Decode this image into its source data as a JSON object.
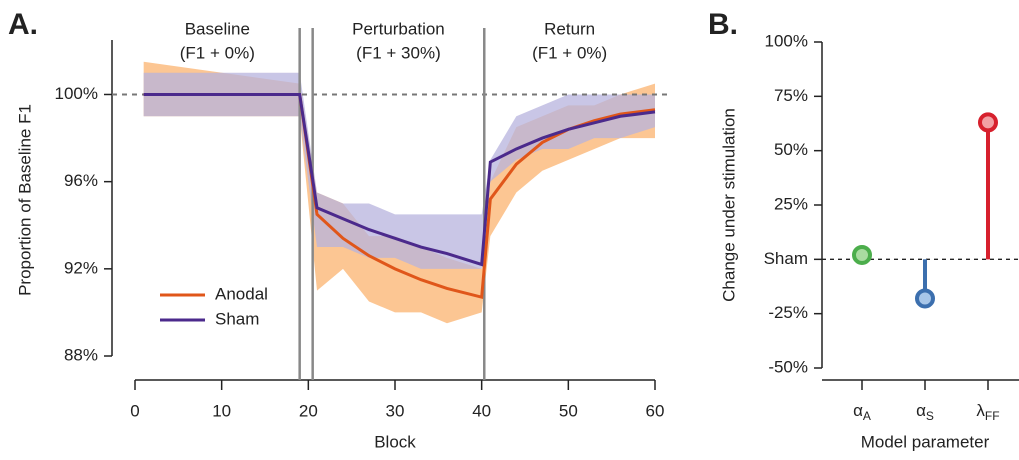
{
  "chart_data": [
    {
      "type": "line",
      "panel_label": "A.",
      "xlabel": "Block",
      "ylabel": "Proportion of Baseline F1",
      "x": [
        1,
        19,
        21,
        24,
        27,
        30,
        33,
        36,
        40,
        41,
        44,
        47,
        50,
        53,
        56,
        60
      ],
      "series": [
        {
          "name": "Anodal",
          "color": "#e0561a",
          "band_color": "#fbb36f",
          "values": [
            100,
            100,
            94.5,
            93.4,
            92.6,
            92.0,
            91.5,
            91.1,
            90.7,
            95.2,
            96.8,
            97.8,
            98.4,
            98.8,
            99.1,
            99.3
          ],
          "band_low": [
            99,
            99,
            91,
            92,
            90.5,
            90,
            90,
            89.5,
            90,
            93.5,
            95.5,
            96.5,
            97,
            97.5,
            98,
            98
          ],
          "band_high": [
            101.5,
            100.5,
            95.5,
            95,
            93.5,
            93.5,
            93,
            92.5,
            92,
            96,
            98.5,
            99,
            99.5,
            99.5,
            100,
            100.5
          ]
        },
        {
          "name": "Sham",
          "color": "#4b2a8c",
          "band_color": "#b7b3dd",
          "values": [
            100,
            100,
            94.8,
            94.3,
            93.8,
            93.4,
            93.0,
            92.7,
            92.2,
            96.9,
            97.5,
            98.0,
            98.4,
            98.7,
            99.0,
            99.2
          ],
          "band_low": [
            99,
            99,
            93,
            93,
            92.5,
            92.5,
            92,
            92,
            92,
            96,
            97,
            97.5,
            97.5,
            98,
            98,
            98.5
          ],
          "band_high": [
            101,
            101,
            95.5,
            95,
            95,
            94.5,
            94.5,
            94.5,
            94.5,
            97,
            99,
            99.5,
            100,
            100,
            100,
            100
          ]
        }
      ],
      "xlim": [
        0,
        60
      ],
      "xticks": [
        0,
        10,
        20,
        30,
        40,
        50,
        60
      ],
      "ylim": [
        88,
        102.5
      ],
      "yticks": [
        {
          "value": 88,
          "label": "88%"
        },
        {
          "value": 92,
          "label": "92%"
        },
        {
          "value": 96,
          "label": "96%"
        },
        {
          "value": 100,
          "label": "100%"
        }
      ],
      "reference_line": 100,
      "phase_boundaries": [
        19,
        20.5,
        40.3
      ],
      "phases": [
        {
          "name": "Baseline",
          "condition": "(F1 + 0%)"
        },
        {
          "name": "Perturbation",
          "condition": "(F1 + 30%)"
        },
        {
          "name": "Return",
          "condition": "(F1 + 0%)"
        }
      ]
    },
    {
      "type": "lollipop",
      "panel_label": "B.",
      "xlabel": "Model parameter",
      "ylabel": "Change under stimulation",
      "categories": [
        "α",
        "α",
        "λ"
      ],
      "category_subscripts": [
        "A",
        "S",
        "FF"
      ],
      "values": [
        2,
        -18,
        63
      ],
      "colors": [
        "#4cae4c",
        "#3c6fae",
        "#d7202d"
      ],
      "fill_colors": [
        "#a9dca0",
        "#a8c6e8",
        "#f2a0a4"
      ],
      "ylim": [
        -50,
        100
      ],
      "yticks": [
        {
          "value": -50,
          "label": "-50%"
        },
        {
          "value": -25,
          "label": "-25%"
        },
        {
          "value": 0,
          "label": "Sham"
        },
        {
          "value": 25,
          "label": "25%"
        },
        {
          "value": 50,
          "label": "50%"
        },
        {
          "value": 75,
          "label": "75%"
        },
        {
          "value": 100,
          "label": "100%"
        }
      ],
      "reference_line": 0
    }
  ]
}
